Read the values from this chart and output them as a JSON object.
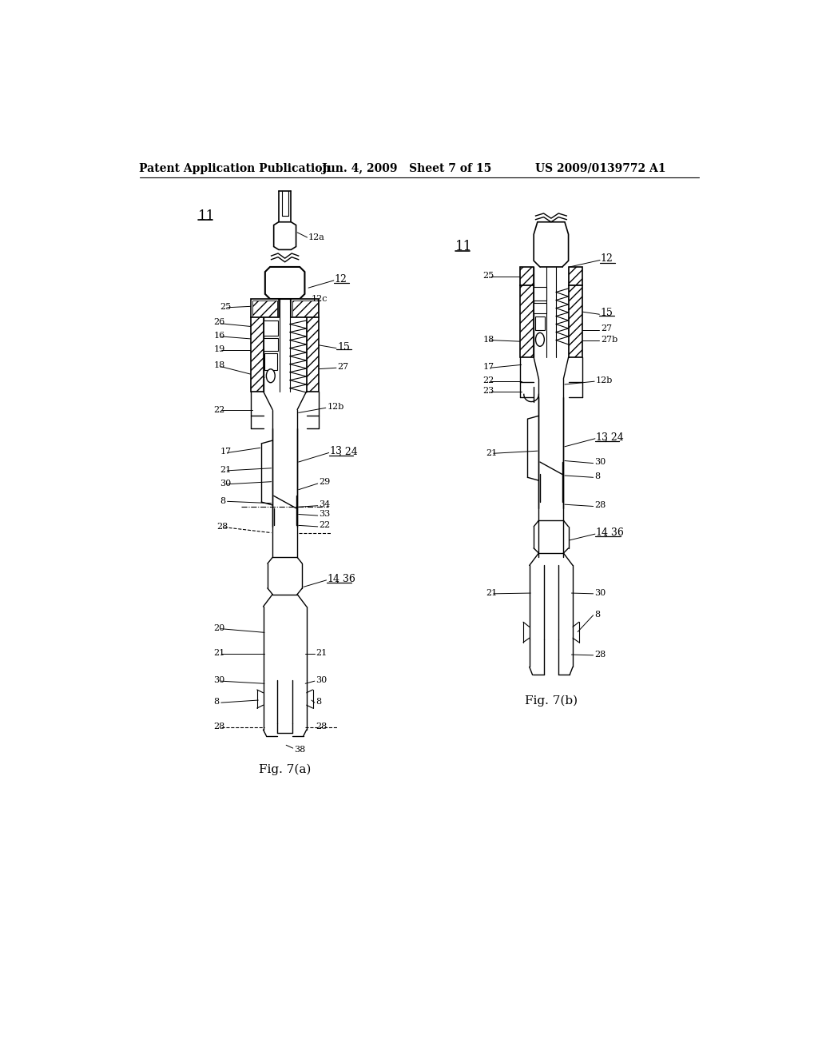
{
  "bg_color": "#ffffff",
  "header_left": "Patent Application Publication",
  "header_center": "Jun. 4, 2009   Sheet 7 of 15",
  "header_right": "US 2009/0139772 A1",
  "fig_a_label": "Fig. 7(a)",
  "fig_b_label": "Fig. 7(b)"
}
